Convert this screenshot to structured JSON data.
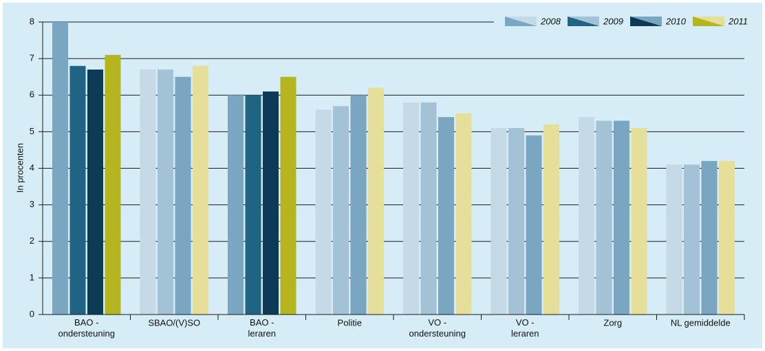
{
  "chart_data": {
    "type": "bar",
    "y_label": "In procenten",
    "categories": [
      "BAO -\nondersteuning",
      "SBAO/(V)SO",
      "BAO -\nleraren",
      "Politie",
      "VO -\nondersteuning",
      "VO -\nleraren",
      "Zorg",
      "NL gemiddelde"
    ],
    "highlight": [
      true,
      false,
      true,
      false,
      false,
      false,
      false,
      false
    ],
    "series": [
      {
        "name": "2008",
        "color": "#7ba6c2",
        "color_light": "#c5d9e6",
        "values": [
          8.0,
          6.7,
          6.0,
          5.6,
          5.8,
          5.1,
          5.4,
          4.1
        ]
      },
      {
        "name": "2009",
        "color": "#1f6583",
        "color_light": "#a3c2d6",
        "values": [
          6.8,
          6.7,
          6.0,
          5.7,
          5.8,
          5.1,
          5.3,
          4.1
        ]
      },
      {
        "name": "2010",
        "color": "#0c3a57",
        "color_light": "#7ba6c2",
        "values": [
          6.7,
          6.5,
          6.1,
          6.0,
          5.4,
          4.9,
          5.3,
          4.2
        ]
      },
      {
        "name": "2011",
        "color": "#b5b520",
        "color_light": "#e5df99",
        "values": [
          7.1,
          6.8,
          6.5,
          6.2,
          5.5,
          5.2,
          5.1,
          4.2
        ]
      }
    ],
    "ylim": [
      0,
      8
    ],
    "yticks": [
      0,
      1,
      2,
      3,
      4,
      5,
      6,
      7,
      8
    ],
    "grid": true,
    "legend": "top-right"
  }
}
